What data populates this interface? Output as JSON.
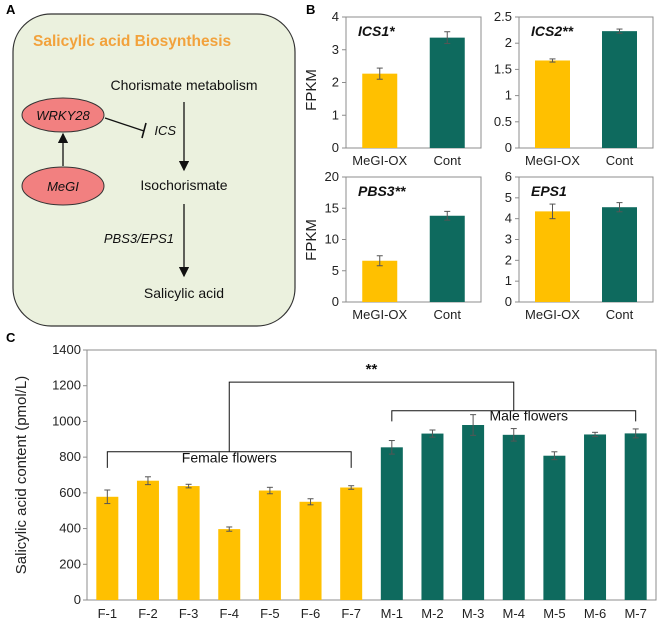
{
  "colors": {
    "female": "#FFC000",
    "male": "#0E6A5E",
    "panel_bg": "#EBF1DE",
    "node_fill": "#F28080",
    "title_orange": "#F2A23C"
  },
  "panel_a": {
    "letter": "A",
    "title": "Salicylic acid Biosynthesis",
    "nodes": {
      "chorismate": "Chorismate metabolism",
      "isochorismate": "Isochorismate",
      "salicylic": "Salicylic acid",
      "wrky28": "WRKY28",
      "megi": "MeGI",
      "ics": "ICS",
      "pbs3eps1": "PBS3/EPS1"
    }
  },
  "panel_b": {
    "letter": "B"
  },
  "panel_c": {
    "letter": "C"
  },
  "chart_data": [
    {
      "type": "bar",
      "panel": "B",
      "gene": "ICS1*",
      "ylabel": "FPKM",
      "ylim": [
        0,
        4
      ],
      "yticks": [
        "0",
        "1",
        "2",
        "3",
        "4"
      ],
      "categories": [
        "MeGI-OX",
        "Cont"
      ],
      "values": [
        2.27,
        3.37
      ],
      "errors": [
        0.17,
        0.18
      ]
    },
    {
      "type": "bar",
      "panel": "B",
      "gene": "ICS2**",
      "ylabel": "",
      "ylim": [
        0,
        2.5
      ],
      "yticks": [
        "0",
        "0.5",
        "1",
        "1.5",
        "2",
        "2.5"
      ],
      "categories": [
        "MeGI-OX",
        "Cont"
      ],
      "values": [
        1.67,
        2.23
      ],
      "errors": [
        0.03,
        0.04
      ]
    },
    {
      "type": "bar",
      "panel": "B",
      "gene": "PBS3**",
      "ylabel": "FPKM",
      "ylim": [
        0,
        20
      ],
      "yticks": [
        "0",
        "5",
        "10",
        "15",
        "20"
      ],
      "categories": [
        "MeGI-OX",
        "Cont"
      ],
      "values": [
        6.6,
        13.8
      ],
      "errors": [
        0.8,
        0.7
      ]
    },
    {
      "type": "bar",
      "panel": "B",
      "gene": "EPS1",
      "ylabel": "",
      "ylim": [
        0,
        6
      ],
      "yticks": [
        "0",
        "1",
        "2",
        "3",
        "4",
        "5",
        "6"
      ],
      "categories": [
        "MeGI-OX",
        "Cont"
      ],
      "values": [
        4.35,
        4.55
      ],
      "errors": [
        0.35,
        0.22
      ]
    },
    {
      "type": "bar",
      "panel": "C",
      "ylabel": "Salicylic acid content (pmol/L)",
      "ylim": [
        0,
        1400
      ],
      "yticks": [
        "0",
        "200",
        "400",
        "600",
        "800",
        "1000",
        "1200",
        "1400"
      ],
      "categories": [
        "F-1",
        "F-2",
        "F-3",
        "F-4",
        "F-5",
        "F-6",
        "F-7",
        "M-1",
        "M-2",
        "M-3",
        "M-4",
        "M-5",
        "M-6",
        "M-7"
      ],
      "values": [
        578,
        668,
        638,
        397,
        613,
        550,
        630,
        855,
        932,
        980,
        925,
        808,
        927,
        933
      ],
      "errors": [
        38,
        22,
        10,
        12,
        18,
        17,
        10,
        38,
        20,
        58,
        35,
        22,
        12,
        25
      ],
      "groups": [
        "female",
        "female",
        "female",
        "female",
        "female",
        "female",
        "female",
        "male",
        "male",
        "male",
        "male",
        "male",
        "male",
        "male"
      ],
      "annotations": {
        "female": "Female flowers",
        "male": "Male flowers",
        "significance": "**"
      }
    }
  ]
}
